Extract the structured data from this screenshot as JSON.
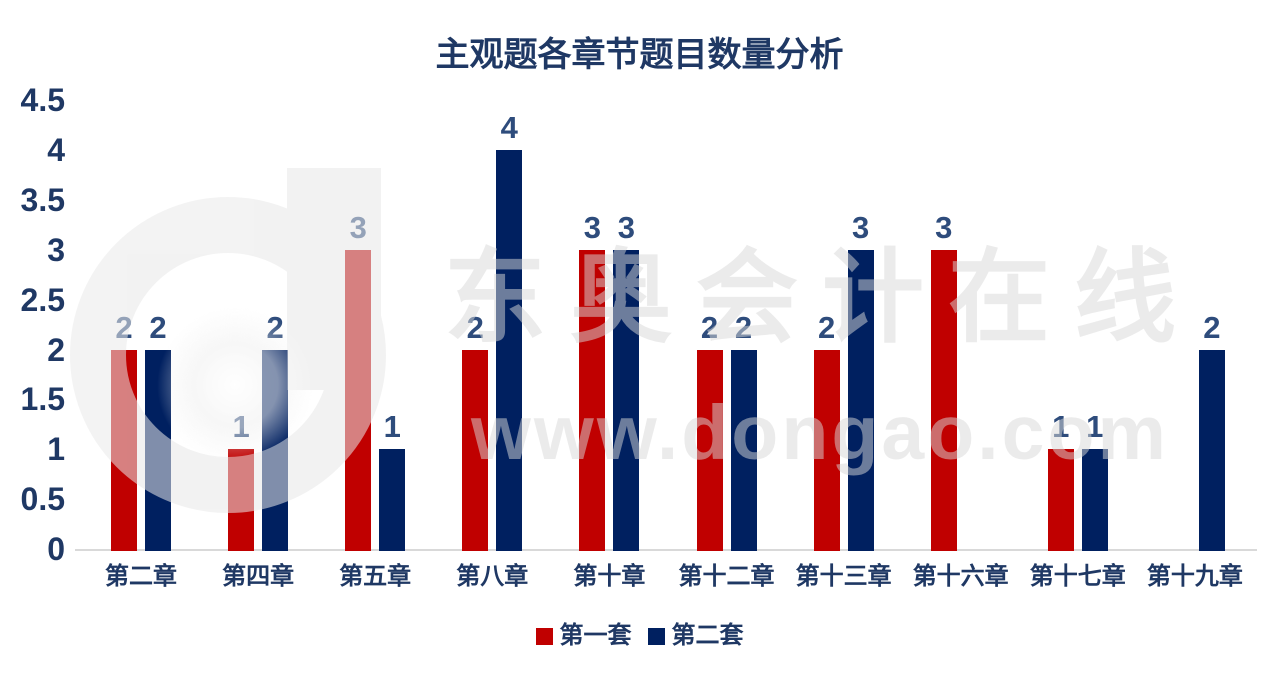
{
  "title": "主观题各章节题目数量分析",
  "watermark": {
    "logo": "dongao-d-logo",
    "line1": "东奥会计在线",
    "line2": "www.dongao.com"
  },
  "colors": {
    "series1_red": "#C00000",
    "series2_blue": "#002060",
    "title_text": "#1F3864",
    "axis_text": "#1F3864",
    "data_label_text": "#2E4C7C",
    "axis_line": "#D9D9D9",
    "watermark_gray": "#E9E9E9"
  },
  "chart_data": {
    "type": "bar",
    "title": "主观题各章节题目数量分析",
    "categories": [
      "第二章",
      "第四章",
      "第五章",
      "第八章",
      "第十章",
      "第十二章",
      "第十三章",
      "第十六章",
      "第十七章",
      "第十九章"
    ],
    "series": [
      {
        "name": "第一套",
        "color": "#C00000",
        "values": [
          2,
          1,
          3,
          2,
          3,
          2,
          2,
          3,
          1,
          null
        ]
      },
      {
        "name": "第二套",
        "color": "#002060",
        "values": [
          2,
          2,
          1,
          4,
          3,
          2,
          3,
          null,
          1,
          2
        ]
      }
    ],
    "xlabel": "",
    "ylabel": "",
    "ylim": [
      0,
      4.5
    ],
    "y_ticks": [
      0,
      0.5,
      1,
      1.5,
      2,
      2.5,
      3,
      3.5,
      4,
      4.5
    ],
    "grid": false,
    "legend_position": "bottom",
    "data_labels": true
  }
}
